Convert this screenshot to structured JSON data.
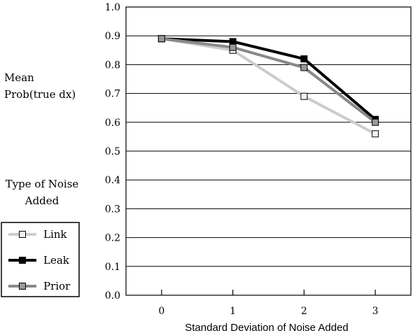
{
  "chart_data": {
    "type": "line",
    "ylabel_lines": [
      "Mean",
      "Prob(true dx)"
    ],
    "xlabel": "Standard Deviation of Noise Added",
    "x": [
      0,
      1,
      2,
      3
    ],
    "xlim": [
      -0.5,
      3.5
    ],
    "ylim": [
      0.0,
      1.0
    ],
    "y_ticks": [
      "0.0",
      "0.1",
      "0.2",
      "0.3",
      "0.4",
      "0.5",
      "0.6",
      "0.7",
      "0.8",
      "0.9",
      "1.0"
    ],
    "x_ticks": [
      "0",
      "1",
      "2",
      "3"
    ],
    "grid": true,
    "legend_title_lines": [
      "Type of Noise",
      "Added"
    ],
    "legend_position": "bottom-left",
    "series": [
      {
        "name": "Link",
        "values": [
          0.89,
          0.85,
          0.69,
          0.56
        ],
        "color": "#cccccc",
        "marker_fill": "#f2f2f2"
      },
      {
        "name": "Leak",
        "values": [
          0.89,
          0.88,
          0.82,
          0.61
        ],
        "color": "#000000",
        "marker_fill": "#000000"
      },
      {
        "name": "Prior",
        "values": [
          0.89,
          0.86,
          0.79,
          0.6
        ],
        "color": "#888888",
        "marker_fill": "#999999"
      }
    ]
  }
}
